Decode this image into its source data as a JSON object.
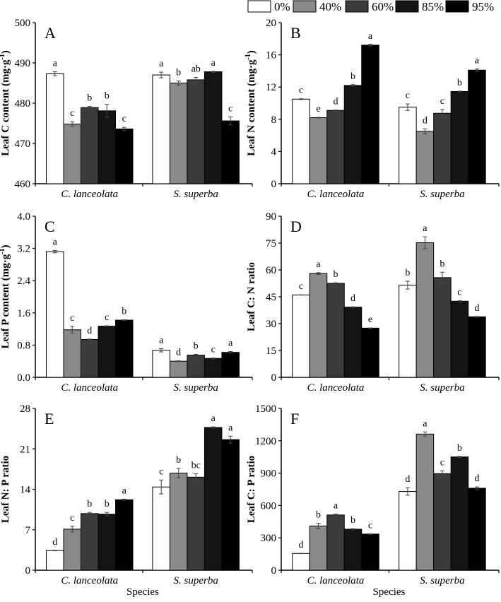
{
  "legend": {
    "items": [
      {
        "label": "0%",
        "color": "#ffffff"
      },
      {
        "label": "40%",
        "color": "#8a8a8a"
      },
      {
        "label": "60%",
        "color": "#3b3b3b"
      },
      {
        "label": "85%",
        "color": "#141414"
      },
      {
        "label": "95%",
        "color": "#000000"
      }
    ]
  },
  "chart_data": [
    {
      "panel": "A",
      "type": "bar",
      "ylabel": "Leaf C content (mg·g",
      "ylabel_sup": "-1",
      "ylabel_end": ")",
      "xlabel": "",
      "categories": [
        "C. lanceolata",
        "S. superba"
      ],
      "ylim": [
        460,
        500
      ],
      "yticks": [
        "460",
        "470",
        "480",
        "490",
        "500"
      ],
      "series": [
        {
          "name": "0%",
          "values": [
            487.3,
            487.0
          ],
          "errors": [
            0.5,
            0.7
          ],
          "letters": [
            "a",
            "a"
          ]
        },
        {
          "name": "40%",
          "values": [
            474.8,
            485.0
          ],
          "errors": [
            0.6,
            0.5
          ],
          "letters": [
            "c",
            "b"
          ]
        },
        {
          "name": "60%",
          "values": [
            478.9,
            485.8
          ],
          "errors": [
            0.3,
            0.6
          ],
          "letters": [
            "b",
            "ab"
          ]
        },
        {
          "name": "85%",
          "values": [
            478.1,
            487.8
          ],
          "errors": [
            1.6,
            0.1
          ],
          "letters": [
            "b",
            "a"
          ]
        },
        {
          "name": "95%",
          "values": [
            473.6,
            475.6
          ],
          "errors": [
            0.4,
            1.0
          ],
          "letters": [
            "c",
            "c"
          ]
        }
      ]
    },
    {
      "panel": "B",
      "type": "bar",
      "ylabel": "Leaf N content (mg·g",
      "ylabel_sup": "-1",
      "ylabel_end": ")",
      "xlabel": "",
      "categories": [
        "C. lanceolata",
        "S. superba"
      ],
      "ylim": [
        0,
        20
      ],
      "yticks": [
        "0",
        "4",
        "8",
        "12",
        "16",
        "20"
      ],
      "series": [
        {
          "name": "0%",
          "values": [
            10.5,
            9.5
          ],
          "errors": [
            0.05,
            0.4
          ],
          "letters": [
            "c",
            "c"
          ]
        },
        {
          "name": "40%",
          "values": [
            8.2,
            6.5
          ],
          "errors": [
            0.05,
            0.3
          ],
          "letters": [
            "e",
            "d"
          ]
        },
        {
          "name": "60%",
          "values": [
            9.1,
            8.75
          ],
          "errors": [
            0.05,
            0.45
          ],
          "letters": [
            "d",
            "c"
          ]
        },
        {
          "name": "85%",
          "values": [
            12.2,
            11.45
          ],
          "errors": [
            0.1,
            0.05
          ],
          "letters": [
            "b",
            "b"
          ]
        },
        {
          "name": "95%",
          "values": [
            17.2,
            14.1
          ],
          "errors": [
            0.1,
            0.15
          ],
          "letters": [
            "a",
            "a"
          ]
        }
      ]
    },
    {
      "panel": "C",
      "type": "bar",
      "ylabel": "Leaf P content (mg·g",
      "ylabel_sup": "-1",
      "ylabel_end": ")",
      "xlabel": "",
      "categories": [
        "C. lanceolata",
        "S. superba"
      ],
      "ylim": [
        0,
        4
      ],
      "yticks": [
        "0.0",
        "0.8",
        "1.6",
        "2.4",
        "3.2",
        "4.0"
      ],
      "series": [
        {
          "name": "0%",
          "values": [
            3.12,
            0.67
          ],
          "errors": [
            0.03,
            0.04
          ],
          "letters": [
            "a",
            "a"
          ]
        },
        {
          "name": "40%",
          "values": [
            1.18,
            0.4
          ],
          "errors": [
            0.08,
            0.01
          ],
          "letters": [
            "c",
            "d"
          ]
        },
        {
          "name": "60%",
          "values": [
            0.94,
            0.55
          ],
          "errors": [
            0.01,
            0.02
          ],
          "letters": [
            "d",
            "b"
          ]
        },
        {
          "name": "85%",
          "values": [
            1.27,
            0.47
          ],
          "errors": [
            0.01,
            0.01
          ],
          "letters": [
            "c",
            "c"
          ]
        },
        {
          "name": "95%",
          "values": [
            1.42,
            0.62
          ],
          "errors": [
            0.01,
            0.02
          ],
          "letters": [
            "b",
            "a"
          ]
        }
      ]
    },
    {
      "panel": "D",
      "type": "bar",
      "ylabel": "Leaf C: N ratio",
      "ylabel_sup": "",
      "ylabel_end": "",
      "xlabel": "",
      "categories": [
        "C. lanceolata",
        "S. superba"
      ],
      "ylim": [
        0,
        90
      ],
      "yticks": [
        "0",
        "15",
        "30",
        "45",
        "60",
        "75",
        "90"
      ],
      "series": [
        {
          "name": "0%",
          "values": [
            46.0,
            51.5
          ],
          "errors": [
            0.1,
            2.2
          ],
          "letters": [
            "c",
            "b"
          ]
        },
        {
          "name": "40%",
          "values": [
            58.0,
            75.2
          ],
          "errors": [
            0.5,
            3.3
          ],
          "letters": [
            "a",
            "a"
          ]
        },
        {
          "name": "60%",
          "values": [
            52.5,
            55.7
          ],
          "errors": [
            0.3,
            3.0
          ],
          "letters": [
            "b",
            "b"
          ]
        },
        {
          "name": "85%",
          "values": [
            39.2,
            42.5
          ],
          "errors": [
            0.2,
            0.3
          ],
          "letters": [
            "d",
            "c"
          ]
        },
        {
          "name": "95%",
          "values": [
            27.5,
            33.8
          ],
          "errors": [
            0.1,
            0.2
          ],
          "letters": [
            "e",
            "d"
          ]
        }
      ]
    },
    {
      "panel": "E",
      "type": "bar",
      "ylabel": "Leaf N: P ratio",
      "ylabel_sup": "",
      "ylabel_end": "",
      "xlabel": "Species",
      "categories": [
        "C. lanceolata",
        "S. superba"
      ],
      "ylim": [
        0,
        28
      ],
      "yticks": [
        "0",
        "7",
        "14",
        "21",
        "28"
      ],
      "series": [
        {
          "name": "0%",
          "values": [
            3.4,
            14.4
          ],
          "errors": [
            0.05,
            1.2
          ],
          "letters": [
            "d",
            "c"
          ]
        },
        {
          "name": "40%",
          "values": [
            7.1,
            16.8
          ],
          "errors": [
            0.5,
            0.8
          ],
          "letters": [
            "c",
            "b"
          ]
        },
        {
          "name": "60%",
          "values": [
            9.8,
            16.1
          ],
          "errors": [
            0.2,
            0.6
          ],
          "letters": [
            "b",
            "bc"
          ]
        },
        {
          "name": "85%",
          "values": [
            9.7,
            24.7
          ],
          "errors": [
            0.3,
            0.1
          ],
          "letters": [
            "b",
            "a"
          ]
        },
        {
          "name": "95%",
          "values": [
            12.2,
            22.6
          ],
          "errors": [
            0.1,
            0.6
          ],
          "letters": [
            "a",
            "a"
          ]
        }
      ]
    },
    {
      "panel": "F",
      "type": "bar",
      "ylabel": "Leaf C: P ratio",
      "ylabel_sup": "",
      "ylabel_end": "",
      "xlabel": "Species",
      "categories": [
        "C. lanceolata",
        "S. superba"
      ],
      "ylim": [
        0,
        1500
      ],
      "yticks": [
        "0",
        "300",
        "600",
        "900",
        "1200",
        "1500"
      ],
      "series": [
        {
          "name": "0%",
          "values": [
            155,
            730
          ],
          "errors": [
            2,
            35
          ],
          "letters": [
            "d",
            "d"
          ]
        },
        {
          "name": "40%",
          "values": [
            410,
            1262
          ],
          "errors": [
            25,
            20
          ],
          "letters": [
            "b",
            "a"
          ]
        },
        {
          "name": "60%",
          "values": [
            512,
            895
          ],
          "errors": [
            8,
            25
          ],
          "letters": [
            "a",
            "c"
          ]
        },
        {
          "name": "85%",
          "values": [
            380,
            1050
          ],
          "errors": [
            5,
            5
          ],
          "letters": [
            "b",
            "b"
          ]
        },
        {
          "name": "95%",
          "values": [
            335,
            760
          ],
          "errors": [
            2,
            12
          ],
          "letters": [
            "c",
            "d"
          ]
        }
      ]
    }
  ]
}
